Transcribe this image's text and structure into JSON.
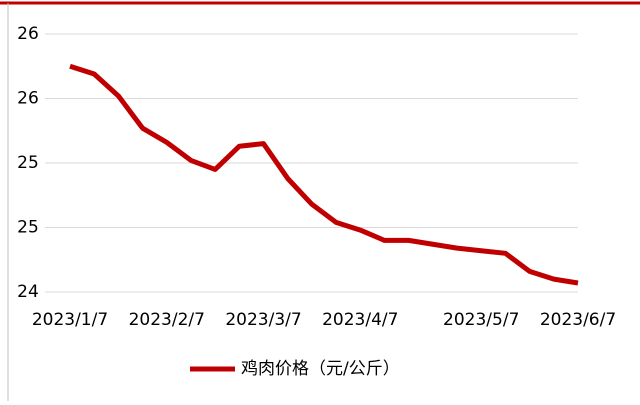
{
  "chart_data": {
    "type": "line",
    "categories": [
      "2023/1/7",
      null,
      null,
      null,
      "2023/2/7",
      null,
      null,
      null,
      "2023/3/7",
      null,
      null,
      null,
      "2023/4/7",
      null,
      null,
      null,
      null,
      "2023/5/7",
      null,
      null,
      null,
      "2023/6/7"
    ],
    "series": [
      {
        "name": "鸡肉价格（元/公斤）",
        "color": "#c00000",
        "values": [
          25.75,
          25.69,
          25.52,
          25.27,
          25.16,
          25.02,
          24.95,
          25.13,
          25.15,
          24.88,
          24.68,
          24.54,
          24.48,
          24.4,
          24.4,
          24.37,
          24.34,
          24.32,
          24.3,
          24.16,
          24.1,
          24.07
        ]
      }
    ],
    "ylim": [
      24,
      26
    ],
    "yticks": [
      24,
      {
        "value": 24.5,
        "label": "25"
      },
      25,
      {
        "value": 25.5,
        "label": "26"
      },
      26
    ],
    "grid": true,
    "legend": "bottom"
  }
}
